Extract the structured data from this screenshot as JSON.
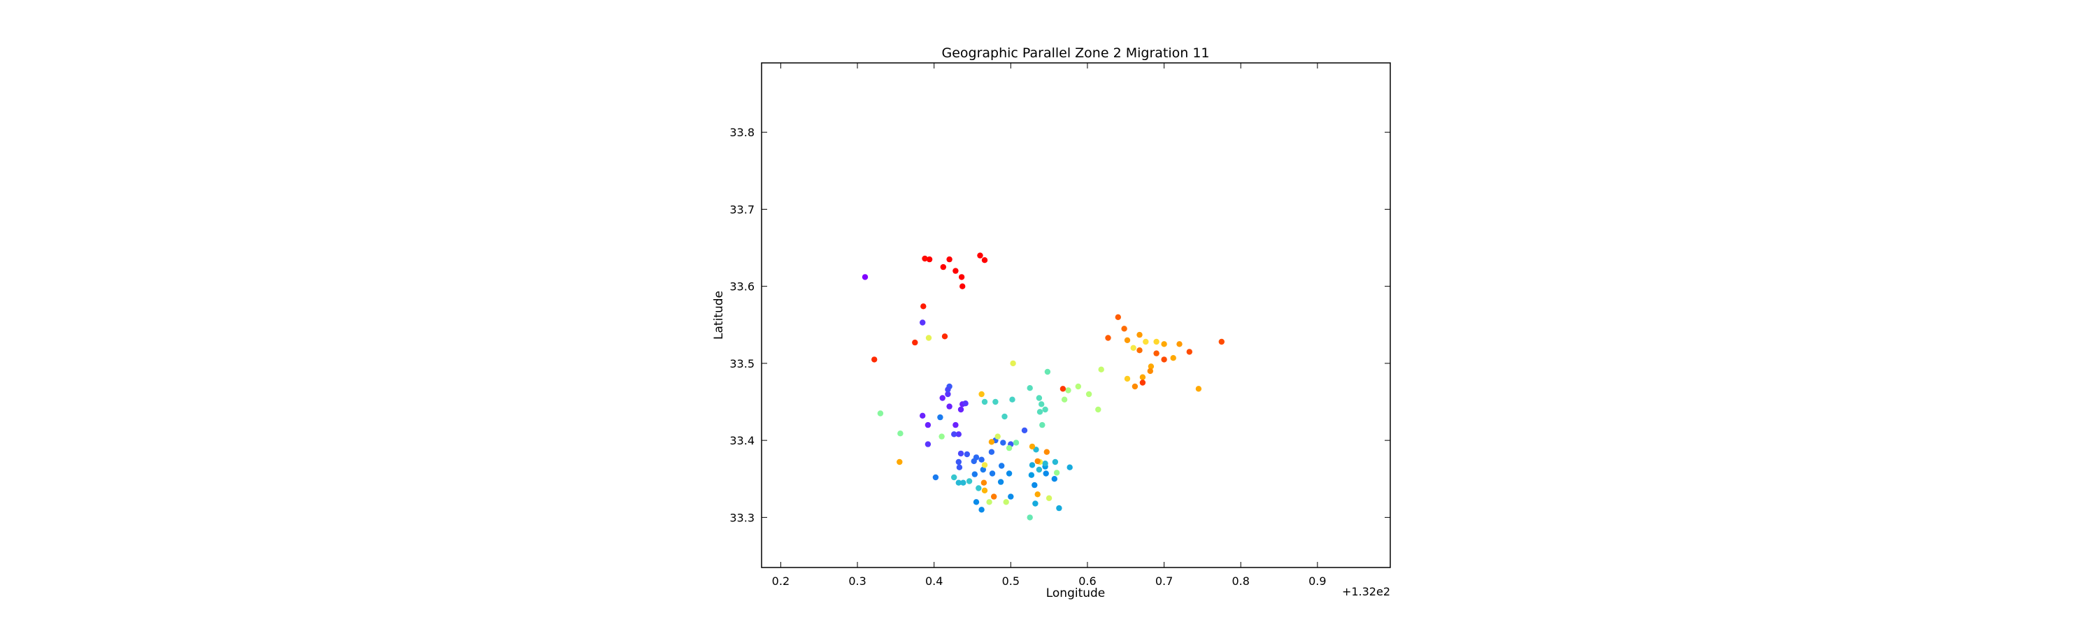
{
  "chart_data": {
    "type": "scatter",
    "title": "Geographic Parallel Zone 2 Migration 11",
    "xlabel": "Longitude",
    "ylabel": "Latitude",
    "x_offset_label": "+1.32e2",
    "xlim": [
      132.175,
      132.995
    ],
    "ylim": [
      33.235,
      33.89
    ],
    "x_ticks": [
      132.2,
      132.3,
      132.4,
      132.5,
      132.6,
      132.7,
      132.8,
      132.9
    ],
    "x_tick_labels": [
      "0.2",
      "0.3",
      "0.4",
      "0.5",
      "0.6",
      "0.7",
      "0.8",
      "0.9"
    ],
    "y_ticks": [
      33.3,
      33.4,
      33.5,
      33.6,
      33.7,
      33.8
    ],
    "y_tick_labels": [
      "33.3",
      "33.4",
      "33.5",
      "33.6",
      "33.7",
      "33.8"
    ],
    "grid": false,
    "legend": "none",
    "colormap": "rainbow",
    "points": [
      {
        "x": 132.31,
        "y": 33.612,
        "color": "#7f00ff"
      },
      {
        "x": 132.385,
        "y": 33.553,
        "color": "#5a35fe"
      },
      {
        "x": 132.385,
        "y": 33.432,
        "color": "#6a22fe"
      },
      {
        "x": 132.392,
        "y": 33.42,
        "color": "#6a22fe"
      },
      {
        "x": 132.392,
        "y": 33.395,
        "color": "#5a35fe"
      },
      {
        "x": 132.411,
        "y": 33.455,
        "color": "#6a22fe"
      },
      {
        "x": 132.418,
        "y": 33.46,
        "color": "#5a35fe"
      },
      {
        "x": 132.42,
        "y": 33.444,
        "color": "#6a22fe"
      },
      {
        "x": 132.428,
        "y": 33.42,
        "color": "#6a22fe"
      },
      {
        "x": 132.432,
        "y": 33.408,
        "color": "#5a35fe"
      },
      {
        "x": 132.435,
        "y": 33.44,
        "color": "#6a22fe"
      },
      {
        "x": 132.437,
        "y": 33.447,
        "color": "#6a22fe"
      },
      {
        "x": 132.441,
        "y": 33.448,
        "color": "#5a35fe"
      },
      {
        "x": 132.426,
        "y": 33.408,
        "color": "#4a47fb"
      },
      {
        "x": 132.42,
        "y": 33.47,
        "color": "#3a59f8"
      },
      {
        "x": 132.418,
        "y": 33.466,
        "color": "#4a47fb"
      },
      {
        "x": 132.435,
        "y": 33.383,
        "color": "#4a47fb"
      },
      {
        "x": 132.432,
        "y": 33.372,
        "color": "#3a59f8"
      },
      {
        "x": 132.443,
        "y": 33.382,
        "color": "#3a59f8"
      },
      {
        "x": 132.455,
        "y": 33.378,
        "color": "#2a6af4"
      },
      {
        "x": 132.452,
        "y": 33.373,
        "color": "#2a6af4"
      },
      {
        "x": 132.462,
        "y": 33.375,
        "color": "#2a6af4"
      },
      {
        "x": 132.475,
        "y": 33.385,
        "color": "#2a6af4"
      },
      {
        "x": 132.48,
        "y": 33.4,
        "color": "#2a6af4"
      },
      {
        "x": 132.49,
        "y": 33.397,
        "color": "#2a6af4"
      },
      {
        "x": 132.5,
        "y": 33.395,
        "color": "#3a59f8"
      },
      {
        "x": 132.518,
        "y": 33.413,
        "color": "#3a59f8"
      },
      {
        "x": 132.433,
        "y": 33.365,
        "color": "#3a59f8"
      },
      {
        "x": 132.464,
        "y": 33.362,
        "color": "#1a7bef"
      },
      {
        "x": 132.476,
        "y": 33.357,
        "color": "#1a7bef"
      },
      {
        "x": 132.488,
        "y": 33.367,
        "color": "#1a7bef"
      },
      {
        "x": 132.453,
        "y": 33.356,
        "color": "#1a7bef"
      },
      {
        "x": 132.402,
        "y": 33.352,
        "color": "#1a7bef"
      },
      {
        "x": 132.408,
        "y": 33.43,
        "color": "#1a7bef"
      },
      {
        "x": 132.455,
        "y": 33.32,
        "color": "#0a8bea"
      },
      {
        "x": 132.462,
        "y": 33.31,
        "color": "#0a8bea"
      },
      {
        "x": 132.487,
        "y": 33.346,
        "color": "#0a8bea"
      },
      {
        "x": 132.498,
        "y": 33.357,
        "color": "#0a8bea"
      },
      {
        "x": 132.5,
        "y": 33.327,
        "color": "#0a8bea"
      },
      {
        "x": 132.531,
        "y": 33.342,
        "color": "#0a8bea"
      },
      {
        "x": 132.546,
        "y": 33.357,
        "color": "#0a8bea"
      },
      {
        "x": 132.557,
        "y": 33.35,
        "color": "#0a8bea"
      },
      {
        "x": 132.527,
        "y": 33.355,
        "color": "#069be4"
      },
      {
        "x": 132.545,
        "y": 33.366,
        "color": "#069be4"
      },
      {
        "x": 132.532,
        "y": 33.318,
        "color": "#16aadd"
      },
      {
        "x": 132.528,
        "y": 33.368,
        "color": "#16aadd"
      },
      {
        "x": 132.563,
        "y": 33.312,
        "color": "#16aadd"
      },
      {
        "x": 132.577,
        "y": 33.365,
        "color": "#16aadd"
      },
      {
        "x": 132.558,
        "y": 33.372,
        "color": "#26b9d5"
      },
      {
        "x": 132.533,
        "y": 33.388,
        "color": "#26b9d5"
      },
      {
        "x": 132.537,
        "y": 33.362,
        "color": "#26b9d5"
      },
      {
        "x": 132.545,
        "y": 33.37,
        "color": "#26b9d5"
      },
      {
        "x": 132.432,
        "y": 33.345,
        "color": "#26b9d5"
      },
      {
        "x": 132.438,
        "y": 33.345,
        "color": "#26b9d5"
      },
      {
        "x": 132.426,
        "y": 33.352,
        "color": "#36c6ce"
      },
      {
        "x": 132.446,
        "y": 33.347,
        "color": "#36c6ce"
      },
      {
        "x": 132.458,
        "y": 33.338,
        "color": "#36c6ce"
      },
      {
        "x": 132.466,
        "y": 33.45,
        "color": "#46d3c5"
      },
      {
        "x": 132.48,
        "y": 33.45,
        "color": "#46d3c5"
      },
      {
        "x": 132.492,
        "y": 33.431,
        "color": "#46d3c5"
      },
      {
        "x": 132.502,
        "y": 33.453,
        "color": "#46d3c5"
      },
      {
        "x": 132.525,
        "y": 33.468,
        "color": "#56debc"
      },
      {
        "x": 132.537,
        "y": 33.455,
        "color": "#56debc"
      },
      {
        "x": 132.54,
        "y": 33.447,
        "color": "#56debc"
      },
      {
        "x": 132.538,
        "y": 33.437,
        "color": "#56debc"
      },
      {
        "x": 132.545,
        "y": 33.44,
        "color": "#56debc"
      },
      {
        "x": 132.541,
        "y": 33.42,
        "color": "#66e8b2"
      },
      {
        "x": 132.548,
        "y": 33.489,
        "color": "#66e8b2"
      },
      {
        "x": 132.525,
        "y": 33.3,
        "color": "#66e8b2"
      },
      {
        "x": 132.507,
        "y": 33.397,
        "color": "#76f0a8"
      },
      {
        "x": 132.33,
        "y": 33.435,
        "color": "#86f79d"
      },
      {
        "x": 132.356,
        "y": 33.409,
        "color": "#86f79d"
      },
      {
        "x": 132.41,
        "y": 33.405,
        "color": "#96fc91"
      },
      {
        "x": 132.498,
        "y": 33.39,
        "color": "#96fc91"
      },
      {
        "x": 132.56,
        "y": 33.358,
        "color": "#96fc91"
      },
      {
        "x": 132.57,
        "y": 33.453,
        "color": "#a6fd86"
      },
      {
        "x": 132.575,
        "y": 33.465,
        "color": "#a6fd86"
      },
      {
        "x": 132.588,
        "y": 33.47,
        "color": "#b6fe79"
      },
      {
        "x": 132.602,
        "y": 33.46,
        "color": "#b6fe79"
      },
      {
        "x": 132.614,
        "y": 33.44,
        "color": "#b6fe79"
      },
      {
        "x": 132.618,
        "y": 33.492,
        "color": "#c6fb6d"
      },
      {
        "x": 132.472,
        "y": 33.32,
        "color": "#c6fb6d"
      },
      {
        "x": 132.494,
        "y": 33.32,
        "color": "#c6fb6d"
      },
      {
        "x": 132.483,
        "y": 33.405,
        "color": "#d6f760"
      },
      {
        "x": 132.55,
        "y": 33.325,
        "color": "#d6f760"
      },
      {
        "x": 132.393,
        "y": 33.533,
        "color": "#e6f253"
      },
      {
        "x": 132.503,
        "y": 33.5,
        "color": "#e6f253"
      },
      {
        "x": 132.466,
        "y": 33.368,
        "color": "#f6ea46"
      },
      {
        "x": 132.538,
        "y": 33.372,
        "color": "#f6ea46"
      },
      {
        "x": 132.66,
        "y": 33.52,
        "color": "#f6ea46"
      },
      {
        "x": 132.676,
        "y": 33.528,
        "color": "#ffe139"
      },
      {
        "x": 132.69,
        "y": 33.528,
        "color": "#ffd72c"
      },
      {
        "x": 132.652,
        "y": 33.48,
        "color": "#ffcd20"
      },
      {
        "x": 132.462,
        "y": 33.46,
        "color": "#ffc214"
      },
      {
        "x": 132.466,
        "y": 33.335,
        "color": "#ffb507"
      },
      {
        "x": 132.528,
        "y": 33.392,
        "color": "#ffa800"
      },
      {
        "x": 132.535,
        "y": 33.33,
        "color": "#ffa800"
      },
      {
        "x": 132.475,
        "y": 33.398,
        "color": "#ffa800"
      },
      {
        "x": 132.355,
        "y": 33.372,
        "color": "#ffa800"
      },
      {
        "x": 132.672,
        "y": 33.482,
        "color": "#ffa800"
      },
      {
        "x": 132.683,
        "y": 33.496,
        "color": "#ffa800"
      },
      {
        "x": 132.7,
        "y": 33.525,
        "color": "#ffa800"
      },
      {
        "x": 132.712,
        "y": 33.507,
        "color": "#ffa800"
      },
      {
        "x": 132.745,
        "y": 33.467,
        "color": "#ffa800"
      },
      {
        "x": 132.72,
        "y": 33.525,
        "color": "#ff9a00"
      },
      {
        "x": 132.668,
        "y": 33.537,
        "color": "#ff9a00"
      },
      {
        "x": 132.652,
        "y": 33.53,
        "color": "#ff9a00"
      },
      {
        "x": 132.662,
        "y": 33.47,
        "color": "#ff8b00"
      },
      {
        "x": 132.682,
        "y": 33.49,
        "color": "#ff8b00"
      },
      {
        "x": 132.535,
        "y": 33.373,
        "color": "#ff8b00"
      },
      {
        "x": 132.547,
        "y": 33.385,
        "color": "#ff8b00"
      },
      {
        "x": 132.465,
        "y": 33.345,
        "color": "#ff8b00"
      },
      {
        "x": 132.478,
        "y": 33.327,
        "color": "#ff7c00"
      },
      {
        "x": 132.648,
        "y": 33.545,
        "color": "#ff6c00"
      },
      {
        "x": 132.668,
        "y": 33.517,
        "color": "#ff6c00"
      },
      {
        "x": 132.64,
        "y": 33.56,
        "color": "#ff5c00"
      },
      {
        "x": 132.627,
        "y": 33.533,
        "color": "#ff5c00"
      },
      {
        "x": 132.69,
        "y": 33.513,
        "color": "#ff5c00"
      },
      {
        "x": 132.7,
        "y": 33.505,
        "color": "#ff4b00"
      },
      {
        "x": 132.733,
        "y": 33.515,
        "color": "#ff4b00"
      },
      {
        "x": 132.775,
        "y": 33.528,
        "color": "#ff4b00"
      },
      {
        "x": 132.672,
        "y": 33.475,
        "color": "#ff3a00"
      },
      {
        "x": 132.568,
        "y": 33.467,
        "color": "#ff3a00"
      },
      {
        "x": 132.322,
        "y": 33.505,
        "color": "#ff2a00"
      },
      {
        "x": 132.375,
        "y": 33.527,
        "color": "#ff2a00"
      },
      {
        "x": 132.414,
        "y": 33.535,
        "color": "#ff2a00"
      },
      {
        "x": 132.386,
        "y": 33.574,
        "color": "#ff1a00"
      },
      {
        "x": 132.388,
        "y": 33.636,
        "color": "#ff0a00"
      },
      {
        "x": 132.394,
        "y": 33.635,
        "color": "#ff0000"
      },
      {
        "x": 132.412,
        "y": 33.625,
        "color": "#ff0000"
      },
      {
        "x": 132.42,
        "y": 33.635,
        "color": "#ff0000"
      },
      {
        "x": 132.428,
        "y": 33.62,
        "color": "#ff0000"
      },
      {
        "x": 132.436,
        "y": 33.612,
        "color": "#ff0000"
      },
      {
        "x": 132.437,
        "y": 33.6,
        "color": "#ff0000"
      },
      {
        "x": 132.46,
        "y": 33.64,
        "color": "#ff0000"
      },
      {
        "x": 132.466,
        "y": 33.634,
        "color": "#ff0000"
      }
    ]
  }
}
